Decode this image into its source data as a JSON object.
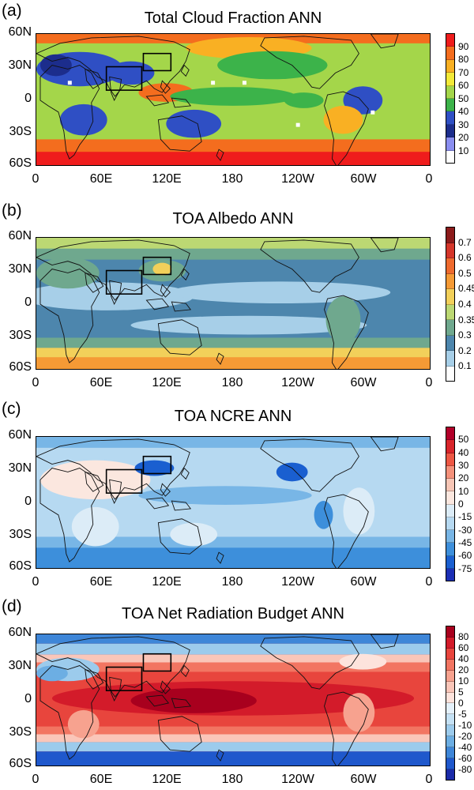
{
  "lat_labels": [
    "60N",
    "30N",
    "0",
    "30S",
    "60S"
  ],
  "lon_labels": [
    "0",
    "60E",
    "120E",
    "180",
    "120W",
    "60W",
    "0"
  ],
  "panels": [
    {
      "label": "(a)",
      "title": "Total Cloud Fraction  ANN",
      "colorbar": {
        "labels": [
          "90",
          "80",
          "70",
          "60",
          "50",
          "40",
          "30",
          "20",
          "10"
        ],
        "colors": [
          "#ef1c1c",
          "#f46d1e",
          "#f9b023",
          "#f3ea38",
          "#a4d64a",
          "#3cb34a",
          "#2f4fc4",
          "#1c2d8c",
          "#8a8ef0",
          "#ffffff"
        ]
      }
    },
    {
      "label": "(b)",
      "title": "TOA Albedo  ANN",
      "colorbar": {
        "labels": [
          "0.7",
          "0.6",
          "0.5",
          "0.45",
          "0.4",
          "0.35",
          "0.3",
          "0.2",
          "0.1"
        ],
        "colors": [
          "#8c1b1b",
          "#d4362a",
          "#ee6a2e",
          "#f59a35",
          "#f2d05a",
          "#bcd873",
          "#6fa88e",
          "#4d86ad",
          "#a7cfe8",
          "#ffffff"
        ]
      }
    },
    {
      "label": "(c)",
      "title": "TOA NCRE  ANN",
      "colorbar": {
        "labels": [
          "50",
          "40",
          "30",
          "20",
          "10",
          "0",
          "-15",
          "-30",
          "-45",
          "-60",
          "-75"
        ],
        "colors": [
          "#b2002a",
          "#d8252b",
          "#ed5744",
          "#f4917b",
          "#f7c6b6",
          "#fbe7df",
          "#dcecf7",
          "#b6d9f1",
          "#78b6e6",
          "#3d8fdb",
          "#1a5fd0",
          "#1c2fb5"
        ]
      }
    },
    {
      "label": "(d)",
      "title": "TOA Net Radiation Budget  ANN",
      "colorbar": {
        "labels": [
          "80",
          "60",
          "40",
          "20",
          "10",
          "5",
          "0",
          "-5",
          "-10",
          "-20",
          "-40",
          "-60",
          "-80"
        ],
        "colors": [
          "#a8001e",
          "#d31b2a",
          "#e8453d",
          "#f27562",
          "#f7a28f",
          "#fac6b9",
          "#fde3dc",
          "#e4f1fb",
          "#c4e1f4",
          "#9ccbec",
          "#6caee3",
          "#3e86d8",
          "#1f58cc",
          "#1b2ba8"
        ]
      }
    }
  ]
}
